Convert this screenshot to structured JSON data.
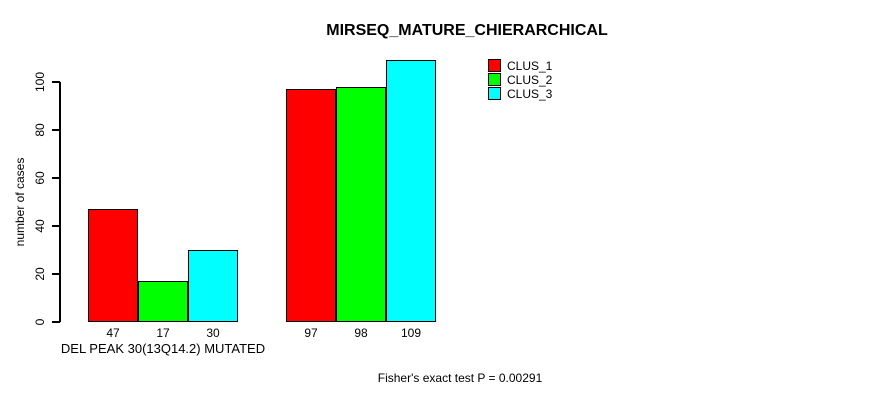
{
  "page": {
    "background": "#ffffff",
    "text_color": "#000000",
    "axis_color": "#000000",
    "bar_border_color": "#000000"
  },
  "chart_data": {
    "type": "bar",
    "title": "MIRSEQ_MATURE_CHIERARCHICAL",
    "ylabel": "number of cases",
    "xlabel": "",
    "ylim": [
      0,
      109
    ],
    "yticks": [
      0,
      20,
      40,
      60,
      80,
      100
    ],
    "grid": false,
    "legend_position": "top-right",
    "categories": [
      "DEL PEAK 30(13Q14.2) MUTATED",
      ""
    ],
    "series": [
      {
        "name": "CLUS_1",
        "color": "#ff0000",
        "values": [
          47,
          97
        ]
      },
      {
        "name": "CLUS_2",
        "color": "#00ff00",
        "values": [
          17,
          98
        ]
      },
      {
        "name": "CLUS_3",
        "color": "#00ffff",
        "values": [
          30,
          109
        ]
      }
    ],
    "annotation": "Fisher's exact test P = 0.00291"
  }
}
